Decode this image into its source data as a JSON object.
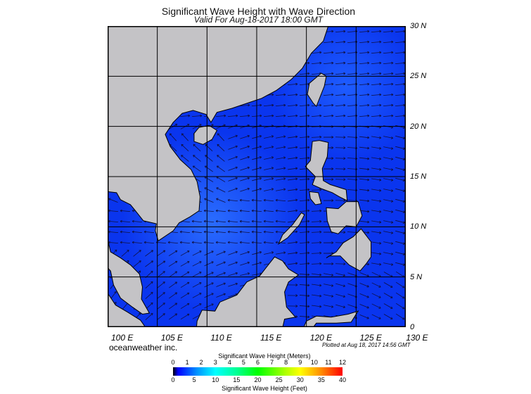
{
  "title": "Significant Wave Height with Wave Direction",
  "subtitle": "Valid For Aug-18-2017 18:00 GMT",
  "lat_labels": [
    "30 N",
    "25 N",
    "20 N",
    "15 N",
    "10 N",
    "5 N",
    "0"
  ],
  "lon_labels": [
    "100 E",
    "105 E",
    "110 E",
    "115 E",
    "120 E",
    "125 E",
    "130 E"
  ],
  "brand": "oceanweather inc.",
  "plotted": "Plotted at Aug 18, 2017 14:56 GMT",
  "colorbar": {
    "meters_label": "Significant Wave Height (Meters)",
    "feet_label": "Significant Wave Height (Feet)",
    "meters_ticks": [
      "0",
      "1",
      "2",
      "3",
      "4",
      "5",
      "6",
      "7",
      "8",
      "9",
      "10",
      "11",
      "12"
    ],
    "feet_ticks": [
      "0",
      "5",
      "10",
      "15",
      "20",
      "25",
      "30",
      "35",
      "40"
    ]
  },
  "colors": {
    "land": "#c4c3c6",
    "ocean": "#0a3cf0"
  }
}
